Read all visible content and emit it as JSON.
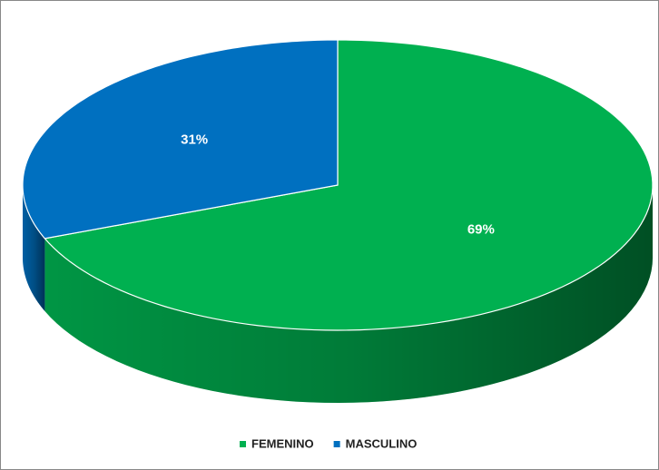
{
  "chart_data": {
    "type": "pie3d",
    "series": [
      {
        "name": "FEMENINO",
        "color": "#00b050",
        "values": [
          69
        ],
        "value_labels": [
          "69%"
        ]
      },
      {
        "name": "MASCULINO",
        "color": "#0070c0",
        "values": [
          31
        ],
        "value_labels": [
          "31%"
        ]
      }
    ],
    "legend": "bottom"
  }
}
